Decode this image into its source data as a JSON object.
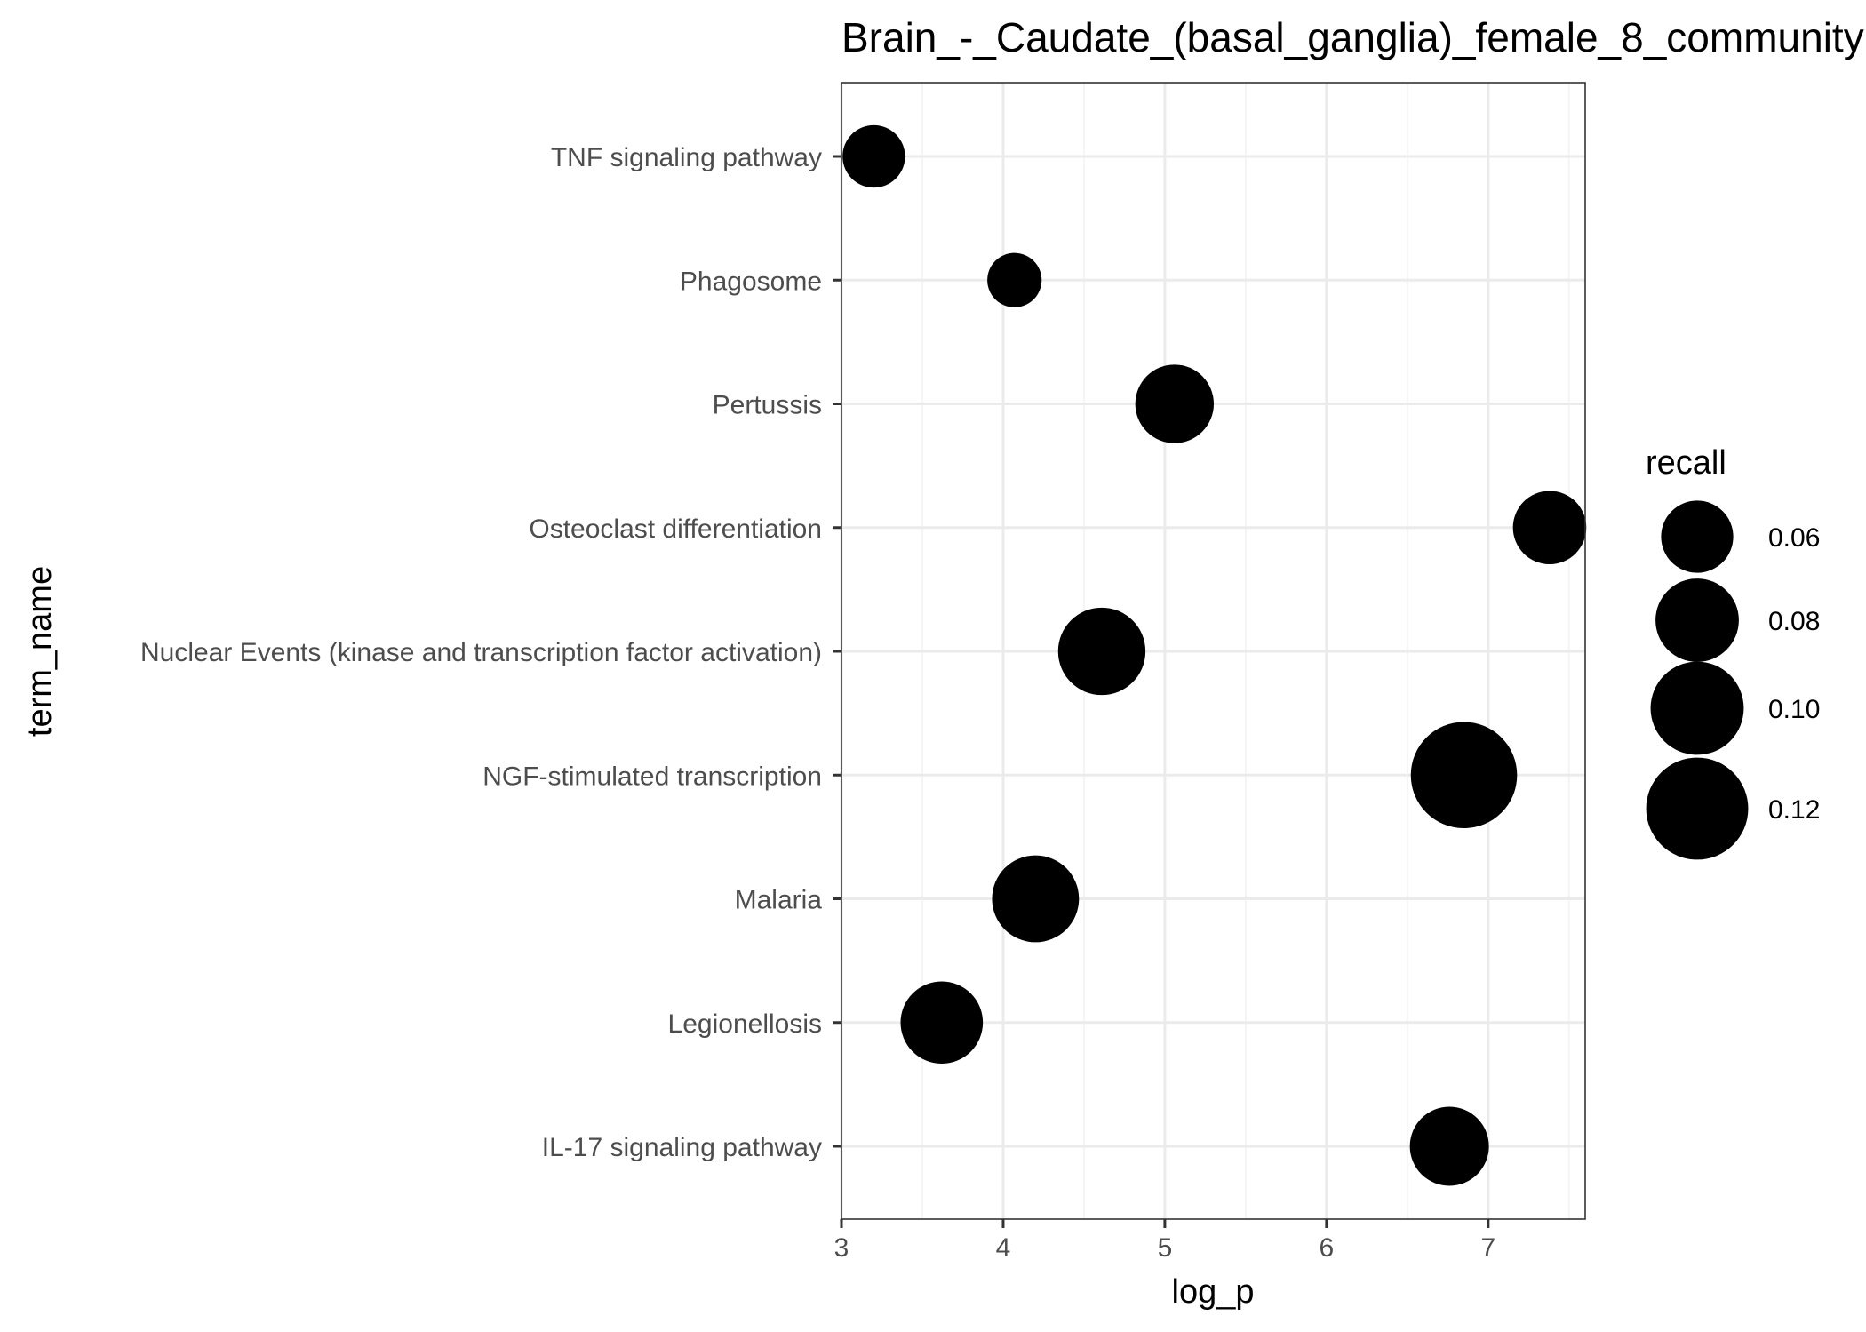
{
  "chart_data": {
    "type": "scatter",
    "title": "Brain_-_Caudate_(basal_ganglia)_female_8_community",
    "xlabel": "log_p",
    "ylabel": "term_name",
    "xlim": [
      3,
      7.6
    ],
    "x_ticks": [
      3,
      4,
      5,
      6,
      7
    ],
    "categories": [
      "TNF signaling pathway",
      "Phagosome",
      "Pertussis",
      "Osteoclast differentiation",
      "Nuclear Events (kinase and transcription factor activation)",
      "NGF-stimulated transcription",
      "Malaria",
      "Legionellosis",
      "IL-17 signaling pathway"
    ],
    "points": [
      {
        "term": "TNF signaling pathway",
        "log_p": 3.2,
        "recall": 0.045
      },
      {
        "term": "Phagosome",
        "log_p": 4.07,
        "recall": 0.034
      },
      {
        "term": "Pertussis",
        "log_p": 5.06,
        "recall": 0.071
      },
      {
        "term": "Osteoclast differentiation",
        "log_p": 7.38,
        "recall": 0.062
      },
      {
        "term": "Nuclear Events (kinase and transcription factor activation)",
        "log_p": 4.61,
        "recall": 0.088
      },
      {
        "term": "NGF-stimulated transcription",
        "log_p": 6.85,
        "recall": 0.13
      },
      {
        "term": "Malaria",
        "log_p": 4.2,
        "recall": 0.087
      },
      {
        "term": "Legionellosis",
        "log_p": 3.62,
        "recall": 0.078
      },
      {
        "term": "IL-17 signaling pathway",
        "log_p": 6.76,
        "recall": 0.072
      }
    ],
    "size_legend": {
      "title": "recall",
      "values": [
        0.06,
        0.08,
        0.1,
        0.12
      ],
      "labels": [
        "0.06",
        "0.08",
        "0.10",
        "0.12"
      ]
    },
    "grid": true,
    "legend_position": "right",
    "point_color": "#000000"
  }
}
